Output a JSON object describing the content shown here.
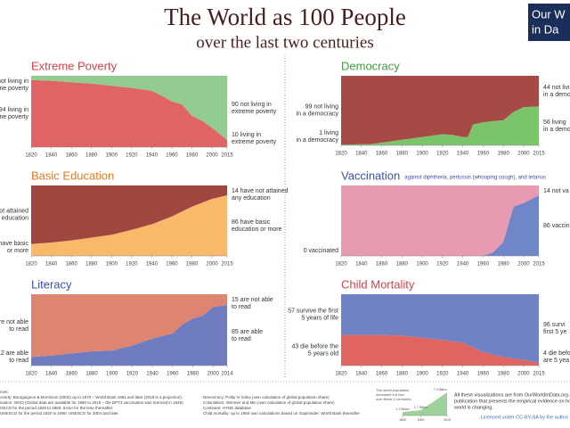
{
  "header": {
    "title": "The World as 100 People",
    "subtitle": "over the last two centuries",
    "logo": [
      "Our W",
      "in Da"
    ]
  },
  "chart_data": [
    {
      "type": "area",
      "title": "Extreme Poverty",
      "title_color": "#d8404a",
      "x": [
        1820,
        1840,
        1860,
        1880,
        1900,
        1920,
        1940,
        1950,
        1960,
        1970,
        1980,
        1990,
        2000,
        2015
      ],
      "series": [
        {
          "name": "living in extreme poverty",
          "color": "#e06464",
          "values": [
            94,
            93,
            91,
            89,
            86,
            83,
            79,
            72,
            64,
            60,
            44,
            37,
            27,
            10
          ]
        },
        {
          "name": "not living in extreme poverty",
          "color": "#92cb8f",
          "values": [
            6,
            7,
            9,
            11,
            14,
            17,
            21,
            28,
            36,
            40,
            56,
            63,
            73,
            90
          ]
        }
      ],
      "start_labels": [
        [
          "94 living in",
          "extreme poverty"
        ],
        [
          "not living in",
          "extreme poverty"
        ]
      ],
      "end_labels": [
        [
          "10 living in",
          "extreme poverty"
        ],
        [
          "90 not living in",
          "extreme poverty"
        ]
      ],
      "xlim": [
        1820,
        2015
      ],
      "ylim": [
        0,
        100
      ],
      "xticks": [
        1820,
        1840,
        1860,
        1880,
        1900,
        1920,
        1940,
        1960,
        1980,
        2000,
        2015
      ]
    },
    {
      "type": "area",
      "title": "Democracy",
      "title_color": "#3f9e3f",
      "x": [
        1820,
        1850,
        1870,
        1900,
        1920,
        1930,
        1940,
        1945,
        1950,
        1960,
        1970,
        1980,
        1990,
        2000,
        2015
      ],
      "series": [
        {
          "name": "living in a democracy",
          "color": "#7cc46b",
          "values": [
            1,
            2,
            6,
            12,
            16,
            15,
            12,
            12,
            30,
            33,
            35,
            36,
            48,
            55,
            56
          ]
        },
        {
          "name": "not living in a democracy",
          "color": "#a54a45",
          "values": [
            99,
            98,
            94,
            88,
            84,
            85,
            88,
            88,
            70,
            67,
            65,
            64,
            52,
            45,
            44
          ]
        }
      ],
      "start_labels": [
        [
          "1 living",
          "in a democracy"
        ],
        [
          "99 not living",
          "in a democracy"
        ]
      ],
      "end_labels": [
        [
          "56 living",
          "in a democ"
        ],
        [
          "44 not livi",
          "in a democ"
        ]
      ],
      "xlim": [
        1820,
        2015
      ],
      "ylim": [
        0,
        100
      ],
      "xticks": [
        1820,
        1840,
        1860,
        1880,
        1900,
        1920,
        1940,
        1960,
        1980,
        2000,
        2015
      ]
    },
    {
      "type": "area",
      "title": "Basic Education",
      "title_color": "#e07a1e",
      "x": [
        1820,
        1840,
        1860,
        1880,
        1900,
        1920,
        1940,
        1960,
        1980,
        2000,
        2015
      ],
      "series": [
        {
          "name": "have basic education or more",
          "color": "#f9b86a",
          "values": [
            17,
            19,
            22,
            26,
            30,
            37,
            45,
            56,
            70,
            81,
            86
          ]
        },
        {
          "name": "have not attained any education",
          "color": "#a0473f",
          "values": [
            83,
            81,
            78,
            74,
            70,
            63,
            55,
            44,
            30,
            19,
            14
          ]
        }
      ],
      "start_labels": [
        [
          "have basic",
          "or more"
        ],
        [
          "not attained",
          "y education"
        ]
      ],
      "end_labels": [
        [
          "86 have basic",
          "education or more"
        ],
        [
          "14 have not attained",
          "any education"
        ]
      ],
      "xlim": [
        1820,
        2015
      ],
      "ylim": [
        0,
        100
      ],
      "xticks": [
        1820,
        1840,
        1860,
        1880,
        1900,
        1920,
        1940,
        1960,
        1980,
        2000,
        2015
      ]
    },
    {
      "type": "area",
      "title": "Vaccination",
      "subtitle": "against diphtheria, pertussis (whooping cough), and tetanus",
      "title_color": "#3a4fa8",
      "x": [
        1820,
        1940,
        1960,
        1970,
        1980,
        1985,
        1990,
        2000,
        2015
      ],
      "series": [
        {
          "name": "vaccinated",
          "color": "#6f86c9",
          "values": [
            0,
            0,
            0,
            5,
            20,
            45,
            70,
            75,
            86
          ]
        },
        {
          "name": "not vaccinated",
          "color": "#e89ab0",
          "values": [
            100,
            100,
            100,
            95,
            80,
            55,
            30,
            25,
            14
          ]
        }
      ],
      "start_labels": [
        [
          "0 vaccinated"
        ],
        []
      ],
      "end_labels": [
        [
          "86 vaccinat"
        ],
        [
          "14 not va"
        ]
      ],
      "xlim": [
        1820,
        2015
      ],
      "ylim": [
        0,
        100
      ],
      "xticks": [
        1820,
        1840,
        1860,
        1880,
        1900,
        1920,
        1940,
        1960,
        1980,
        2000,
        2015
      ]
    },
    {
      "type": "area",
      "title": "Literacy",
      "title_color": "#3a4fa8",
      "x": [
        1820,
        1840,
        1860,
        1880,
        1900,
        1920,
        1940,
        1960,
        1970,
        1980,
        1990,
        2000,
        2014
      ],
      "series": [
        {
          "name": "are able to read",
          "color": "#6f7dc0",
          "values": [
            12,
            14,
            17,
            20,
            21,
            28,
            38,
            45,
            58,
            66,
            70,
            82,
            85
          ]
        },
        {
          "name": "are not able to read",
          "color": "#de8572",
          "values": [
            88,
            86,
            83,
            80,
            79,
            72,
            62,
            55,
            42,
            34,
            30,
            18,
            15
          ]
        }
      ],
      "start_labels": [
        [
          "12 are able",
          "to read"
        ],
        [
          "are not able",
          "to read"
        ]
      ],
      "end_labels": [
        [
          "85 are able",
          "to read"
        ],
        [
          "15 are not able",
          "to read"
        ]
      ],
      "xlim": [
        1820,
        2014
      ],
      "ylim": [
        0,
        100
      ],
      "xticks": [
        1820,
        1840,
        1860,
        1880,
        1900,
        1920,
        1940,
        1960,
        1980,
        2000,
        2014
      ]
    },
    {
      "type": "area",
      "title": "Child Mortality",
      "title_color": "#d8404a",
      "x": [
        1820,
        1860,
        1880,
        1900,
        1920,
        1940,
        1960,
        1980,
        2000,
        2015
      ],
      "series": [
        {
          "name": "die before 5 years old",
          "color": "#e0645f",
          "values": [
            43,
            43,
            42,
            39,
            36,
            32,
            19,
            12,
            8,
            4
          ]
        },
        {
          "name": "survive the first 5 years of life",
          "color": "#6e82c5",
          "values": [
            57,
            57,
            58,
            61,
            64,
            68,
            81,
            88,
            92,
            96
          ]
        }
      ],
      "start_labels": [
        [
          "43 die before the",
          "5 years old"
        ],
        [
          "57 survive the first",
          "5 years of life"
        ]
      ],
      "end_labels": [
        [
          "4 die befo",
          "are 5 yea"
        ],
        [
          "96 survi",
          "first 5 ye"
        ]
      ],
      "xlim": [
        1820,
        2015
      ],
      "ylim": [
        0,
        100
      ],
      "xticks": [
        1820,
        1840,
        1860,
        1880,
        1900,
        1920,
        1940,
        1960,
        1980,
        2000,
        2015
      ]
    },
    {
      "type": "area",
      "note": [
        "The world population",
        "increased 6.8 fold",
        "over these 2 centuries."
      ],
      "x": [
        1820,
        1900,
        2015
      ],
      "series": [
        {
          "name": "world population",
          "color": "#9fd29a",
          "values": [
            1.1,
            1.7,
            7.4
          ],
          "value_labels": [
            "1.1 Billion",
            "1.7 Billion",
            "7.4 Billion"
          ]
        }
      ],
      "xlim": [
        1820,
        2015
      ],
      "ylim": [
        0,
        8
      ],
      "xticks": [
        1820,
        1900,
        2015
      ]
    }
  ],
  "footer": {
    "sources": [
      "rces:",
      "overty: Bourguignon & Morrisson (2002) up to 1970 – World Bank 1981 and later (2015 is a projection).",
      "ination: WHO (Global data are available for 1980 to 2015 – the DPT3 vaccination was licenced in 1949)",
      "OECD for the period 1820 to 1960. IIASA for the time thereafter.",
      "UNESCO for the period 1820 to 1990; UNESCO for 2004 and later."
    ],
    "sources2": [
      "Democracy: Polity IV index (own calculation of global population share)",
      "Colonialism: Wimmer and Min (own calculation of global population share)",
      "Continent: HYDE database",
      "Child mortality: up to 1960 own calculations based on Gapminder; World Bank thereafter"
    ],
    "about": [
      "All these visualizations are from OurWorldInData.org an online",
      "publication that presents the empirical evidence on how the",
      "world is changing."
    ],
    "license": "Licensed under CC-BY-SA by the author"
  }
}
